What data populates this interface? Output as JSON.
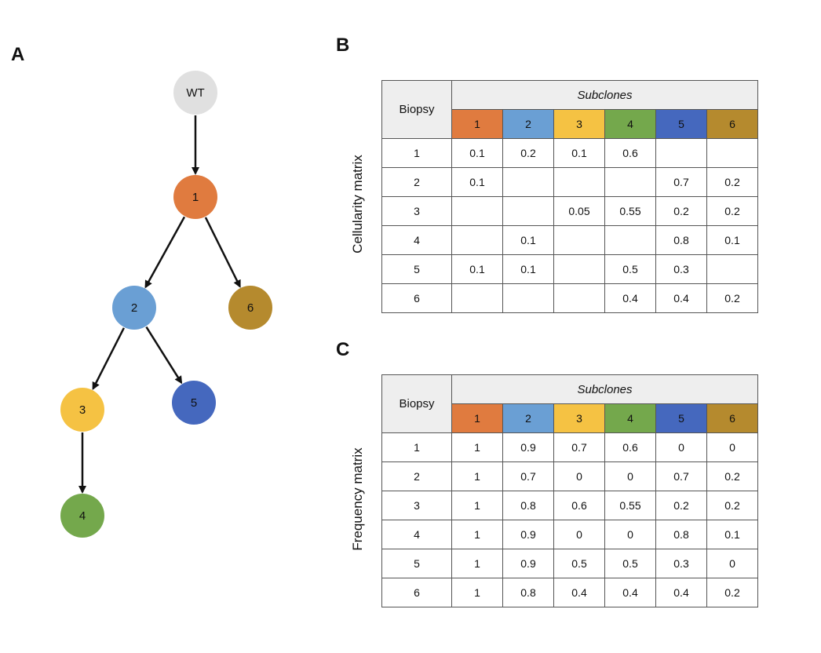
{
  "panel_labels": {
    "a": "A",
    "b": "B",
    "c": "C"
  },
  "tree": {
    "nodes": [
      {
        "id": "wt",
        "label": "WT",
        "color": "#e0e0e0"
      },
      {
        "id": "n1",
        "label": "1",
        "color": "#e07b3f"
      },
      {
        "id": "n2",
        "label": "2",
        "color": "#6a9fd4"
      },
      {
        "id": "n6",
        "label": "6",
        "color": "#b58a2e"
      },
      {
        "id": "n3",
        "label": "3",
        "color": "#f5c243"
      },
      {
        "id": "n5",
        "label": "5",
        "color": "#4568be"
      },
      {
        "id": "n4",
        "label": "4",
        "color": "#74a84c"
      }
    ],
    "edges": [
      [
        "wt",
        "n1"
      ],
      [
        "n1",
        "n2"
      ],
      [
        "n1",
        "n6"
      ],
      [
        "n2",
        "n3"
      ],
      [
        "n2",
        "n5"
      ],
      [
        "n3",
        "n4"
      ]
    ]
  },
  "subclone_colors": [
    "#e07b3f",
    "#6a9fd4",
    "#f5c243",
    "#74a84c",
    "#4568be",
    "#b58a2e"
  ],
  "cellularity": {
    "side_label": "Cellularity matrix",
    "biopsy_header": "Biopsy",
    "subclones_header": "Subclones",
    "columns": [
      "1",
      "2",
      "3",
      "4",
      "5",
      "6"
    ],
    "rows": [
      {
        "biopsy": "1",
        "values": [
          "0.1",
          "0.2",
          "0.1",
          "0.6",
          "",
          ""
        ]
      },
      {
        "biopsy": "2",
        "values": [
          "0.1",
          "",
          "",
          "",
          "0.7",
          "0.2"
        ]
      },
      {
        "biopsy": "3",
        "values": [
          "",
          "",
          "0.05",
          "0.55",
          "0.2",
          "0.2"
        ]
      },
      {
        "biopsy": "4",
        "values": [
          "",
          "0.1",
          "",
          "",
          "0.8",
          "0.1"
        ]
      },
      {
        "biopsy": "5",
        "values": [
          "0.1",
          "0.1",
          "",
          "0.5",
          "0.3",
          ""
        ]
      },
      {
        "biopsy": "6",
        "values": [
          "",
          "",
          "",
          "0.4",
          "0.4",
          "0.2"
        ]
      }
    ]
  },
  "frequency": {
    "side_label": "Frequency matrix",
    "biopsy_header": "Biopsy",
    "subclones_header": "Subclones",
    "columns": [
      "1",
      "2",
      "3",
      "4",
      "5",
      "6"
    ],
    "rows": [
      {
        "biopsy": "1",
        "values": [
          "1",
          "0.9",
          "0.7",
          "0.6",
          "0",
          "0"
        ]
      },
      {
        "biopsy": "2",
        "values": [
          "1",
          "0.7",
          "0",
          "0",
          "0.7",
          "0.2"
        ]
      },
      {
        "biopsy": "3",
        "values": [
          "1",
          "0.8",
          "0.6",
          "0.55",
          "0.2",
          "0.2"
        ]
      },
      {
        "biopsy": "4",
        "values": [
          "1",
          "0.9",
          "0",
          "0",
          "0.8",
          "0.1"
        ]
      },
      {
        "biopsy": "5",
        "values": [
          "1",
          "0.9",
          "0.5",
          "0.5",
          "0.3",
          "0"
        ]
      },
      {
        "biopsy": "6",
        "values": [
          "1",
          "0.8",
          "0.4",
          "0.4",
          "0.4",
          "0.2"
        ]
      }
    ]
  }
}
